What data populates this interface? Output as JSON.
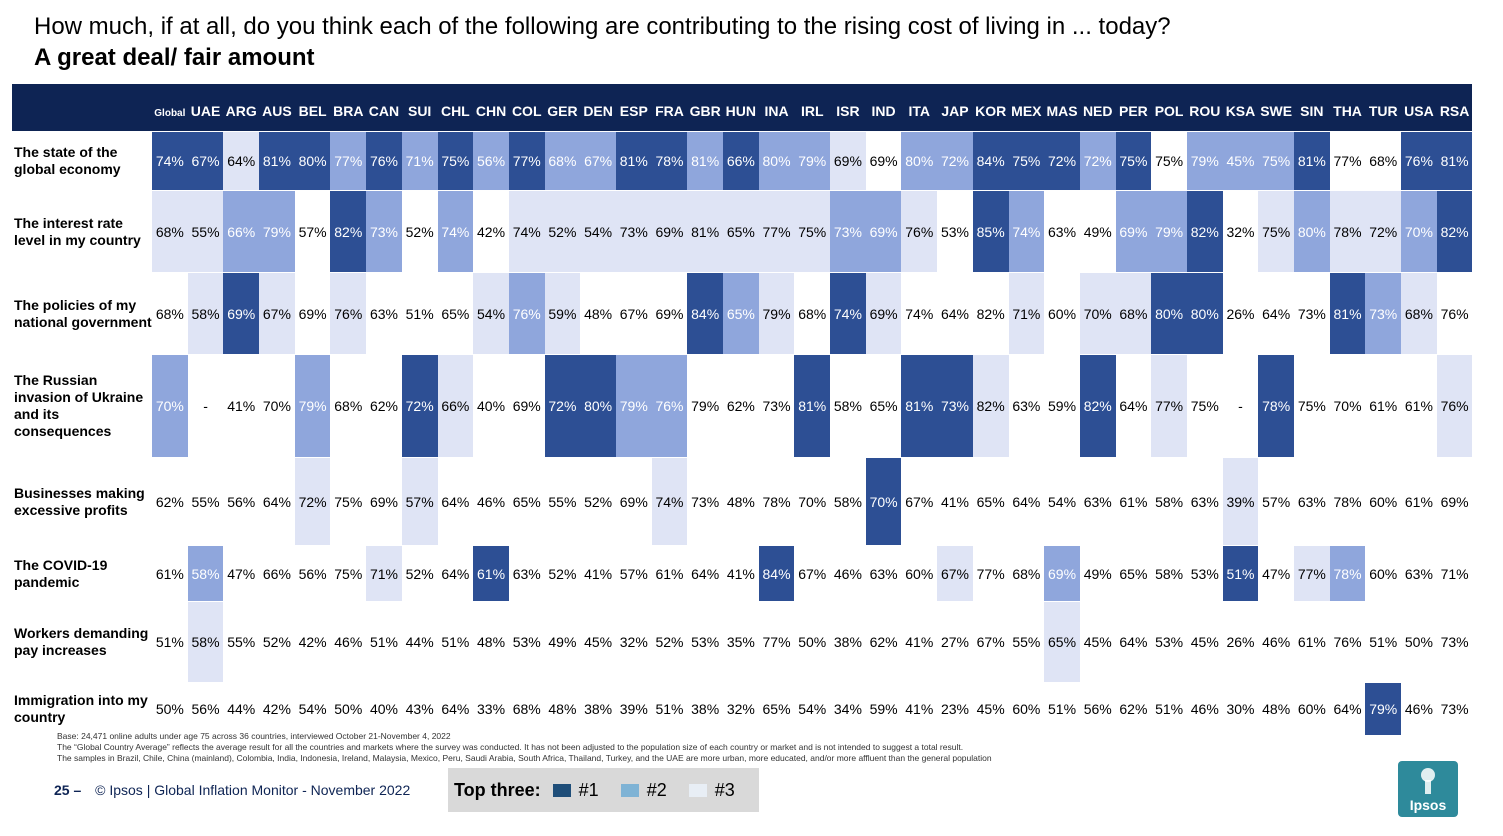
{
  "title": "How much, if at all, do you think each of the following are contributing to the rising cost of living in ... today?",
  "subtitle": "A great deal/ fair amount",
  "columns": [
    "Global",
    "UAE",
    "ARG",
    "AUS",
    "BEL",
    "BRA",
    "CAN",
    "SUI",
    "CHL",
    "CHN",
    "COL",
    "GER",
    "DEN",
    "ESP",
    "FRA",
    "GBR",
    "HUN",
    "INA",
    "IRL",
    "ISR",
    "IND",
    "ITA",
    "JAP",
    "KOR",
    "MEX",
    "MAS",
    "NED",
    "PER",
    "POL",
    "ROU",
    "KSA",
    "SWE",
    "SIN",
    "THA",
    "TUR",
    "USA",
    "RSA"
  ],
  "rows": [
    {
      "label": "The state of the global economy",
      "values": [
        "74%",
        "67%",
        "64%",
        "81%",
        "80%",
        "77%",
        "76%",
        "71%",
        "75%",
        "56%",
        "77%",
        "68%",
        "67%",
        "81%",
        "78%",
        "81%",
        "66%",
        "80%",
        "79%",
        "69%",
        "69%",
        "80%",
        "72%",
        "84%",
        "75%",
        "72%",
        "72%",
        "75%",
        "75%",
        "79%",
        "45%",
        "75%",
        "81%",
        "77%",
        "68%",
        "76%",
        "81%"
      ],
      "ranks": [
        1,
        1,
        3,
        1,
        1,
        2,
        1,
        2,
        1,
        2,
        1,
        2,
        2,
        1,
        1,
        2,
        1,
        2,
        2,
        3,
        0,
        2,
        2,
        1,
        1,
        1,
        2,
        1,
        0,
        2,
        2,
        2,
        1,
        0,
        0,
        1,
        1
      ]
    },
    {
      "label": "The interest rate level in my country",
      "values": [
        "68%",
        "55%",
        "66%",
        "79%",
        "57%",
        "82%",
        "73%",
        "52%",
        "74%",
        "42%",
        "74%",
        "52%",
        "54%",
        "73%",
        "69%",
        "81%",
        "65%",
        "77%",
        "75%",
        "73%",
        "69%",
        "76%",
        "53%",
        "85%",
        "74%",
        "63%",
        "49%",
        "69%",
        "79%",
        "82%",
        "32%",
        "75%",
        "80%",
        "78%",
        "72%",
        "70%",
        "82%"
      ],
      "ranks": [
        3,
        3,
        2,
        2,
        0,
        1,
        2,
        0,
        2,
        0,
        3,
        3,
        3,
        3,
        3,
        3,
        3,
        3,
        3,
        2,
        2,
        3,
        0,
        1,
        2,
        0,
        0,
        2,
        2,
        1,
        0,
        3,
        2,
        3,
        3,
        2,
        1
      ]
    },
    {
      "label": "The policies of my national government",
      "values": [
        "68%",
        "58%",
        "69%",
        "67%",
        "69%",
        "76%",
        "63%",
        "51%",
        "65%",
        "54%",
        "76%",
        "59%",
        "48%",
        "67%",
        "69%",
        "84%",
        "65%",
        "79%",
        "68%",
        "74%",
        "69%",
        "74%",
        "64%",
        "82%",
        "71%",
        "60%",
        "70%",
        "68%",
        "80%",
        "80%",
        "26%",
        "64%",
        "73%",
        "81%",
        "73%",
        "68%",
        "76%"
      ],
      "ranks": [
        0,
        3,
        1,
        3,
        0,
        3,
        0,
        0,
        0,
        3,
        2,
        3,
        0,
        0,
        0,
        1,
        2,
        3,
        0,
        1,
        3,
        0,
        0,
        0,
        3,
        0,
        3,
        3,
        1,
        1,
        0,
        0,
        0,
        1,
        2,
        3,
        0
      ]
    },
    {
      "label": "The Russian invasion of Ukraine and its consequences",
      "values": [
        "70%",
        "-",
        "41%",
        "70%",
        "79%",
        "68%",
        "62%",
        "72%",
        "66%",
        "40%",
        "69%",
        "72%",
        "80%",
        "79%",
        "76%",
        "79%",
        "62%",
        "73%",
        "81%",
        "58%",
        "65%",
        "81%",
        "73%",
        "82%",
        "63%",
        "59%",
        "82%",
        "64%",
        "77%",
        "75%",
        "-",
        "78%",
        "75%",
        "70%",
        "61%",
        "61%",
        "76%"
      ],
      "ranks": [
        2,
        0,
        0,
        0,
        2,
        0,
        0,
        1,
        3,
        0,
        0,
        1,
        1,
        2,
        2,
        0,
        0,
        0,
        1,
        0,
        0,
        1,
        1,
        3,
        0,
        0,
        1,
        0,
        3,
        0,
        0,
        1,
        0,
        0,
        0,
        0,
        3
      ]
    },
    {
      "label": "Businesses making excessive profits",
      "values": [
        "62%",
        "55%",
        "56%",
        "64%",
        "72%",
        "75%",
        "69%",
        "57%",
        "64%",
        "46%",
        "65%",
        "55%",
        "52%",
        "69%",
        "74%",
        "73%",
        "48%",
        "78%",
        "70%",
        "58%",
        "70%",
        "67%",
        "41%",
        "65%",
        "64%",
        "54%",
        "63%",
        "61%",
        "58%",
        "63%",
        "39%",
        "57%",
        "63%",
        "78%",
        "60%",
        "61%",
        "69%"
      ],
      "ranks": [
        0,
        0,
        0,
        0,
        3,
        0,
        0,
        3,
        0,
        0,
        0,
        0,
        0,
        0,
        3,
        0,
        0,
        0,
        0,
        0,
        1,
        0,
        0,
        0,
        0,
        0,
        0,
        0,
        0,
        0,
        3,
        0,
        0,
        0,
        0,
        0,
        0
      ]
    },
    {
      "label": "The COVID-19 pandemic",
      "values": [
        "61%",
        "58%",
        "47%",
        "66%",
        "56%",
        "75%",
        "71%",
        "52%",
        "64%",
        "61%",
        "63%",
        "52%",
        "41%",
        "57%",
        "61%",
        "64%",
        "41%",
        "84%",
        "67%",
        "46%",
        "63%",
        "60%",
        "67%",
        "77%",
        "68%",
        "69%",
        "49%",
        "65%",
        "58%",
        "53%",
        "51%",
        "47%",
        "77%",
        "78%",
        "60%",
        "63%",
        "71%"
      ],
      "ranks": [
        0,
        2,
        0,
        0,
        0,
        0,
        3,
        0,
        0,
        1,
        0,
        0,
        0,
        0,
        0,
        0,
        0,
        1,
        0,
        0,
        0,
        0,
        3,
        0,
        0,
        2,
        0,
        0,
        0,
        0,
        1,
        0,
        3,
        2,
        0,
        0,
        0
      ]
    },
    {
      "label": "Workers demanding pay increases",
      "values": [
        "51%",
        "58%",
        "55%",
        "52%",
        "42%",
        "46%",
        "51%",
        "44%",
        "51%",
        "48%",
        "53%",
        "49%",
        "45%",
        "32%",
        "52%",
        "53%",
        "35%",
        "77%",
        "50%",
        "38%",
        "62%",
        "41%",
        "27%",
        "67%",
        "55%",
        "65%",
        "45%",
        "64%",
        "53%",
        "45%",
        "26%",
        "46%",
        "61%",
        "76%",
        "51%",
        "50%",
        "73%"
      ],
      "ranks": [
        0,
        3,
        0,
        0,
        0,
        0,
        0,
        0,
        0,
        0,
        0,
        0,
        0,
        0,
        0,
        0,
        0,
        0,
        0,
        0,
        0,
        0,
        0,
        0,
        0,
        3,
        0,
        0,
        0,
        0,
        0,
        0,
        0,
        0,
        0,
        0,
        0
      ]
    },
    {
      "label": "Immigration into my country",
      "values": [
        "50%",
        "56%",
        "44%",
        "42%",
        "54%",
        "50%",
        "40%",
        "43%",
        "64%",
        "33%",
        "68%",
        "48%",
        "38%",
        "39%",
        "51%",
        "38%",
        "32%",
        "65%",
        "54%",
        "34%",
        "59%",
        "41%",
        "23%",
        "45%",
        "60%",
        "51%",
        "56%",
        "62%",
        "51%",
        "46%",
        "30%",
        "48%",
        "60%",
        "64%",
        "79%",
        "46%",
        "73%"
      ],
      "ranks": [
        0,
        0,
        0,
        0,
        0,
        0,
        0,
        0,
        0,
        0,
        0,
        0,
        0,
        0,
        0,
        0,
        0,
        0,
        0,
        0,
        0,
        0,
        0,
        0,
        0,
        0,
        0,
        0,
        0,
        0,
        0,
        0,
        0,
        0,
        1,
        0,
        0
      ]
    }
  ],
  "notes": {
    "base": "Base: 24,471 online adults under age 75 across 36 countries, interviewed October 21-November 4, 2022",
    "global_avg": "The “Global Country Average” reflects the average result for all the countries and markets where the survey was conducted. It has not been adjusted to the population size of each country or market and is not intended to suggest a total result.",
    "samples": "The samples in Brazil, Chile, China (mainland), Colombia, India, Indonesia, Ireland, Malaysia, Mexico, Peru, Saudi Arabia, South Africa, Thailand, Turkey, and the UAE are more urban, more educated, and/or more affluent than the general population"
  },
  "footer": {
    "page_number": "25 –",
    "text": "© Ipsos | Global Inflation Monitor - November 2022"
  },
  "legend": {
    "title": "Top three:",
    "items": [
      {
        "label": "#1",
        "color": "#1f4e79"
      },
      {
        "label": "#2",
        "color": "#7fb3d5"
      },
      {
        "label": "#3",
        "color": "#e8eef5"
      }
    ]
  },
  "logo": {
    "text": "Ipsos"
  },
  "colors": {
    "header": "#0e2454",
    "rank1": "#2d4f94",
    "rank2": "#8fa6dc",
    "rank3": "#dfe4f5"
  }
}
